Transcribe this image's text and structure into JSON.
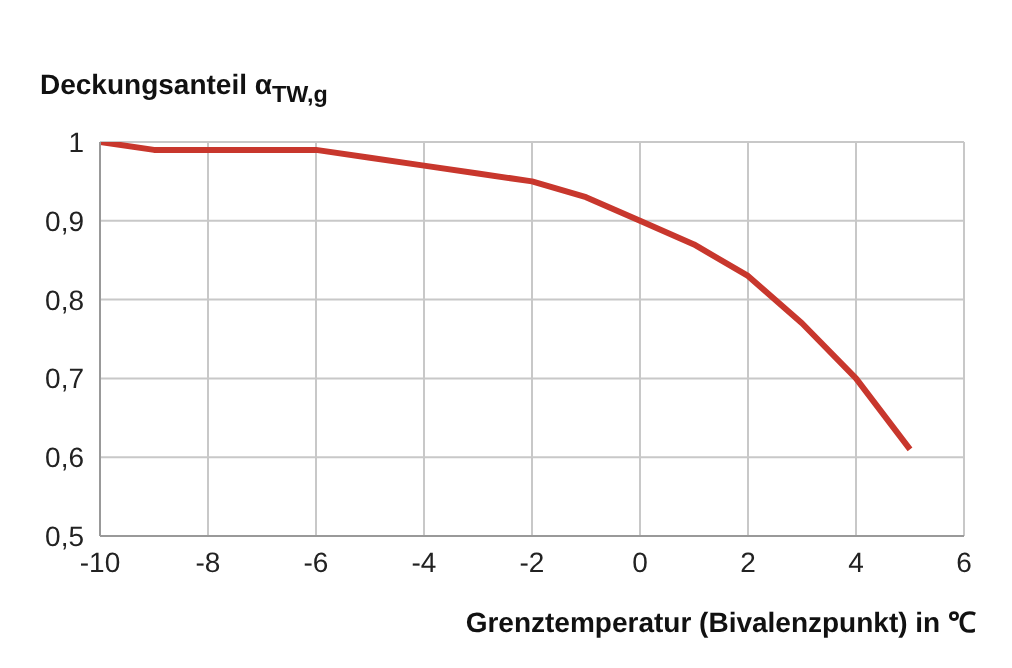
{
  "chart_data": {
    "type": "line",
    "ylabel": "Deckungsanteil α$_{TW,g}$",
    "xlabel": "Grenztemperatur (Bivalenzpunkt) in ℃",
    "x": [
      -10,
      -9,
      -8,
      -7,
      -6,
      -5,
      -4,
      -3,
      -2,
      -1,
      0,
      1,
      2,
      3,
      4,
      5
    ],
    "series": [
      {
        "color": "#c8372d",
        "values": [
          1,
          0.99,
          0.99,
          0.99,
          0.99,
          0.98,
          0.97,
          0.96,
          0.95,
          0.93,
          0.9,
          0.87,
          0.83,
          0.77,
          0.7,
          0.61
        ]
      }
    ],
    "xlim": [
      -10,
      6
    ],
    "xticks": [
      -10,
      -8,
      -6,
      -4,
      -2,
      0,
      2,
      4,
      6
    ],
    "ylim": [
      0.5,
      1
    ],
    "yticks": [
      {
        "value": 0.5,
        "label": "0,5"
      },
      {
        "value": 0.6,
        "label": "0,6"
      },
      {
        "value": 0.7,
        "label": "0,7"
      },
      {
        "value": 0.8,
        "label": "0,8"
      },
      {
        "value": 0.9,
        "label": "0,9"
      },
      {
        "value": 1,
        "label": "1"
      }
    ],
    "grid": true,
    "marker": "none",
    "line_style": "solid"
  }
}
